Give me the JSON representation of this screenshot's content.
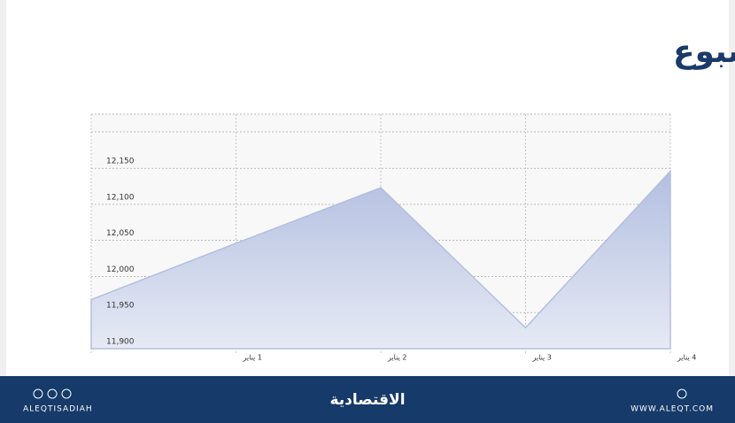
{
  "chart_data": {
    "type": "area",
    "title": "المؤشر في أسبوع",
    "categories": [
      null,
      "1 يناير",
      "2 يناير",
      "3 يناير",
      "4 يناير"
    ],
    "values": [
      11968,
      12046,
      12123,
      11929,
      12146
    ],
    "color": "#b3bfe0",
    "ylim": [
      11900,
      12225
    ],
    "yticks": [
      {
        "value": 11900,
        "label": "11,900"
      },
      {
        "value": 11950,
        "label": "11,950"
      },
      {
        "value": 12000,
        "label": "12,000"
      },
      {
        "value": 12050,
        "label": "12,050"
      },
      {
        "value": 12100,
        "label": "12,100"
      },
      {
        "value": 12150,
        "label": "12,150"
      }
    ],
    "grid": true
  },
  "footer": {
    "left": "ALEQTISADIAH",
    "center": "الاقتصادية",
    "right": "WWW.ALEQT.COM"
  }
}
